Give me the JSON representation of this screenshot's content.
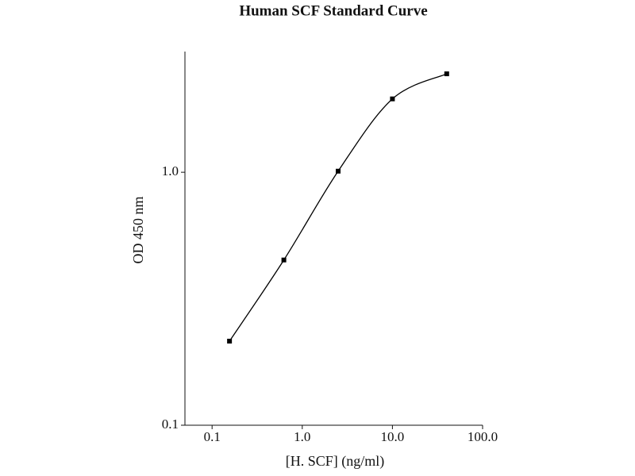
{
  "chart_data": {
    "type": "scatter",
    "title": "Human SCF Standard Curve",
    "x_label": "[H. SCF] (ng/ml)",
    "y_label": "OD 450 nm",
    "x": [
      0.156,
      0.625,
      2.5,
      10,
      40
    ],
    "values": [
      0.215,
      0.45,
      1.01,
      1.95,
      2.45
    ],
    "color": "#000000",
    "x_log": true,
    "y_log": true,
    "xlim": [
      0.05,
      100
    ],
    "ylim": [
      0.1,
      3
    ],
    "xticks": [
      0.1,
      {
        "value": 1,
        "label": "1.0"
      },
      {
        "value": 10,
        "label": "10.0"
      },
      {
        "value": 100,
        "label": "100.0"
      }
    ],
    "yticks": [
      0.1,
      {
        "value": 1,
        "label": "1.0"
      }
    ],
    "grid": false
  }
}
